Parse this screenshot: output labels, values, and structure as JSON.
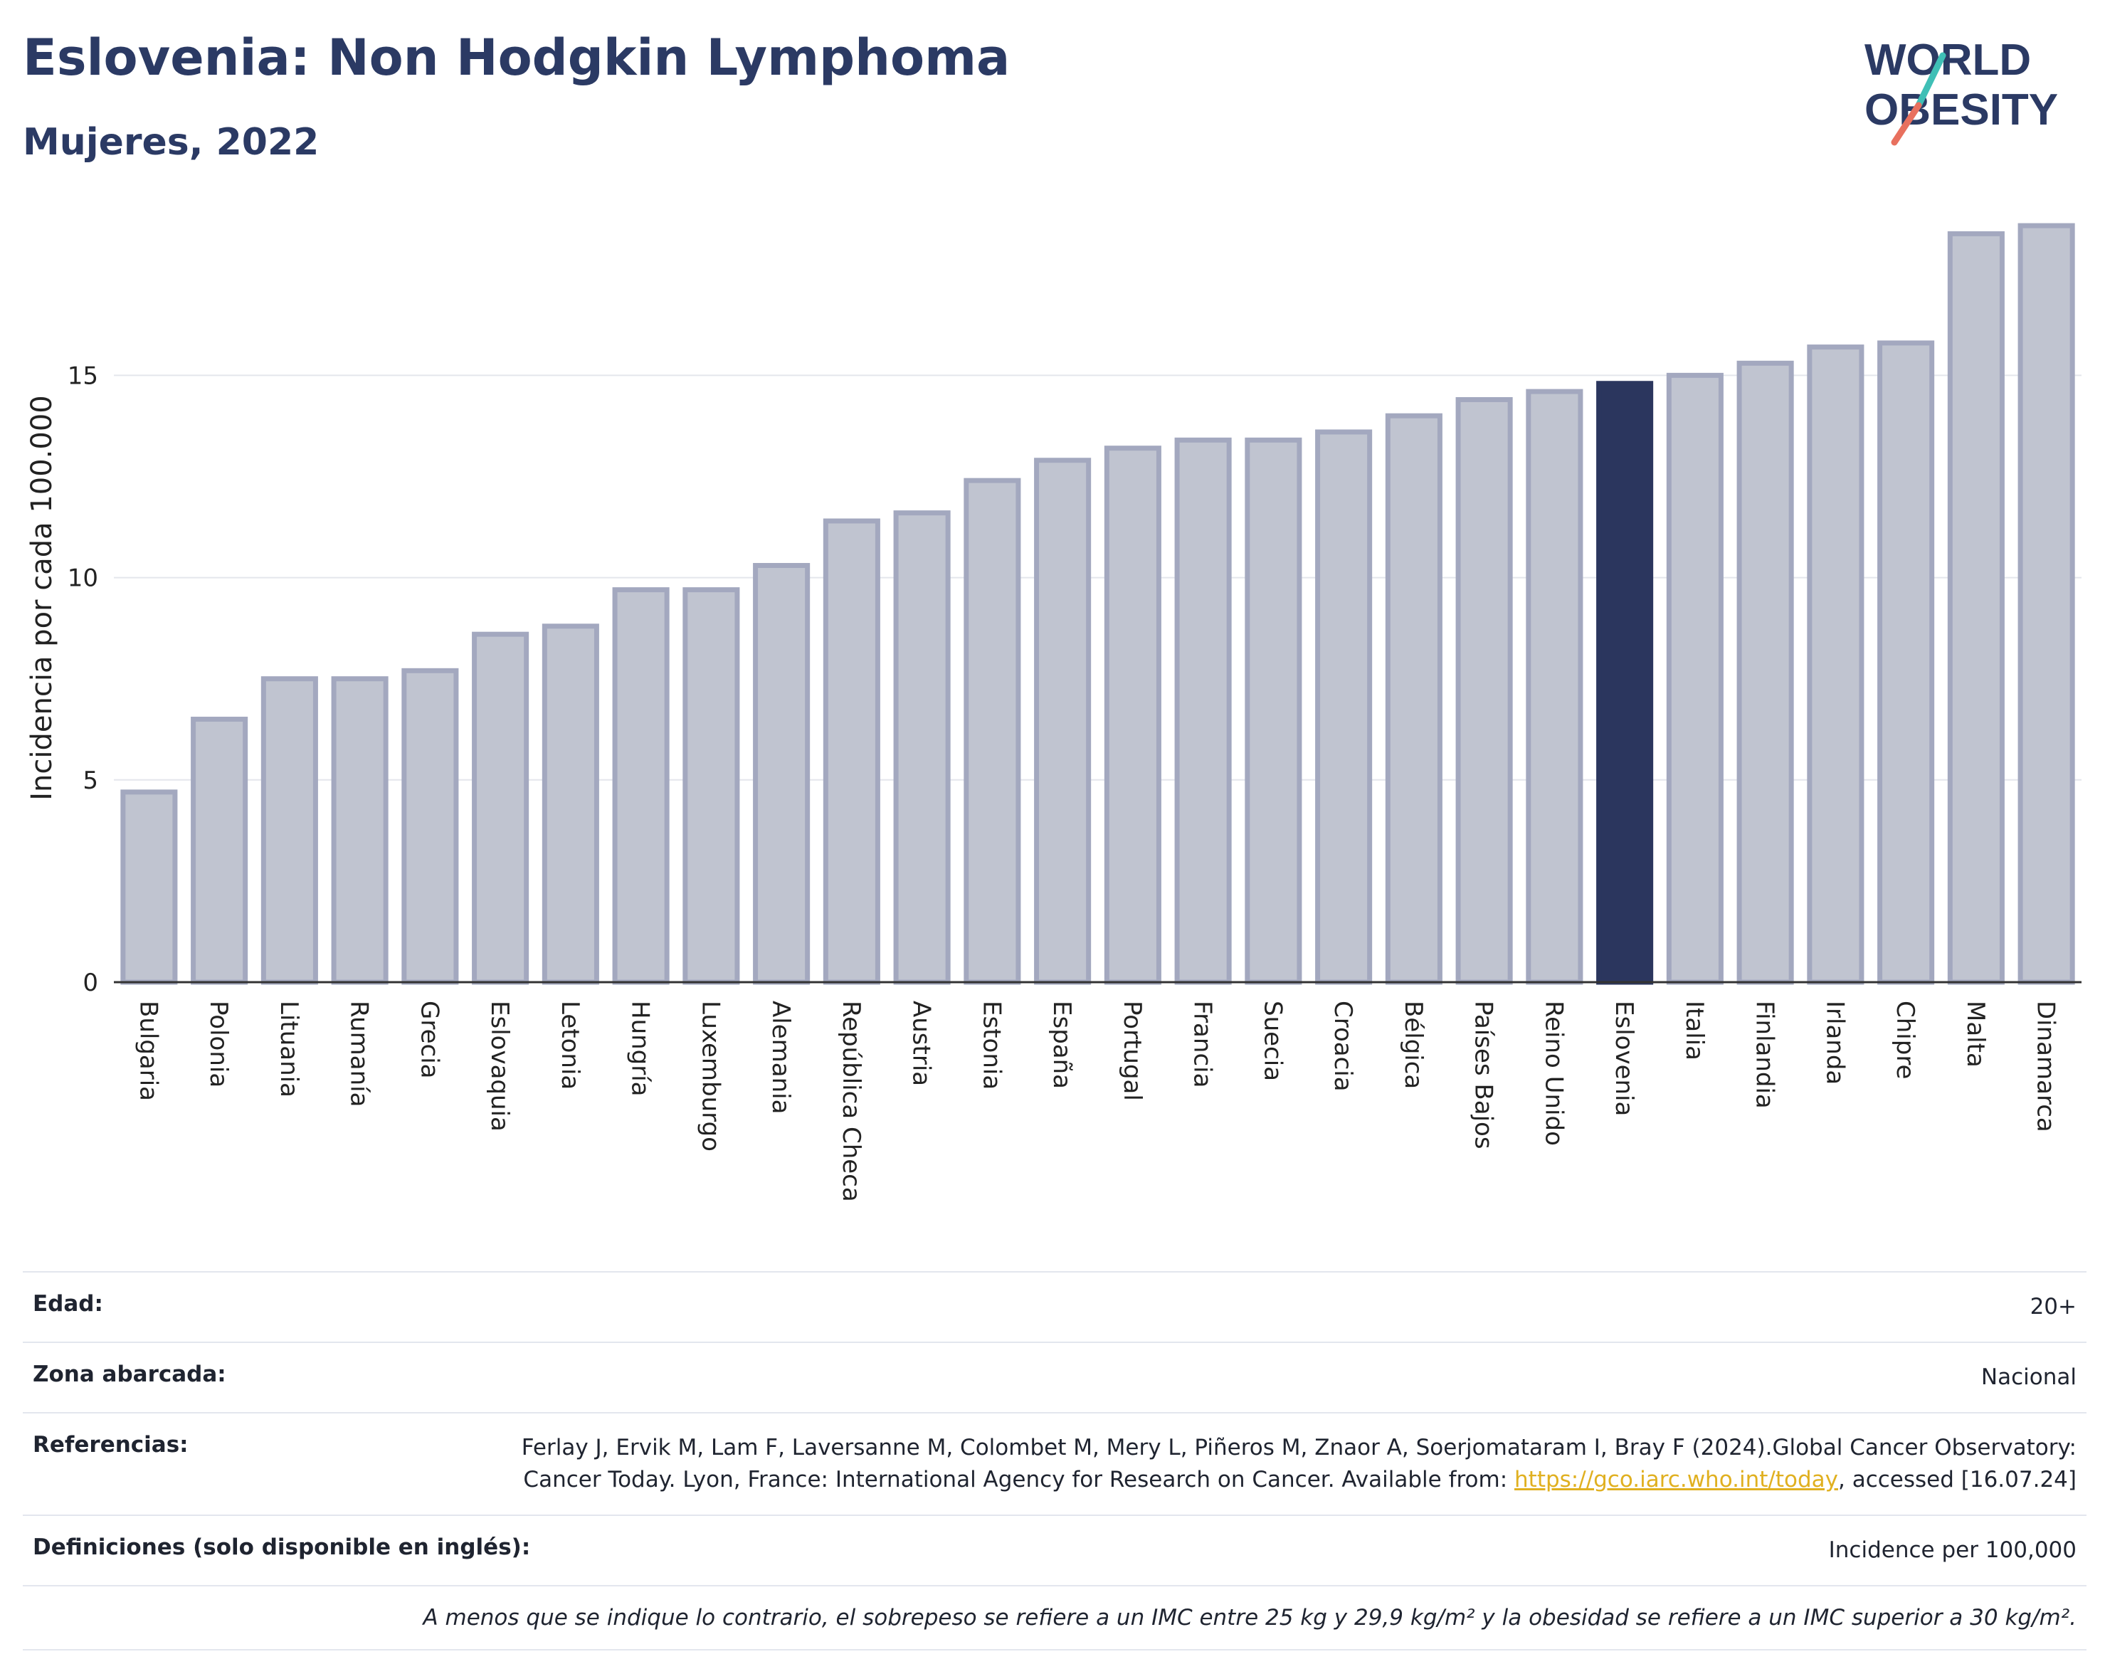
{
  "header": {
    "title": "Eslovenia: Non Hodgkin Lymphoma",
    "subtitle": "Mujeres, 2022"
  },
  "logo": {
    "line1": "WORLD",
    "line2": "OBESITY"
  },
  "colors": {
    "highlight": "#2b365e",
    "bar_fill": "#c0c4d0",
    "bar_stroke": "#a3a8bf",
    "title": "#2b3a64",
    "link": "#e0b020",
    "logo_teal": "#3fbfb6",
    "logo_red": "#e8705e"
  },
  "chart_data": {
    "type": "bar",
    "ylabel": "Incidencia por cada 100.000",
    "ylim": [
      0,
      19
    ],
    "yticks": [
      0,
      5,
      10,
      15
    ],
    "grid": true,
    "highlight": "Eslovenia",
    "categories": [
      "Bulgaria",
      "Polonia",
      "Lituania",
      "Rumanía",
      "Grecia",
      "Eslovaquia",
      "Letonia",
      "Hungría",
      "Luxemburgo",
      "Alemania",
      "República Checa",
      "Austria",
      "Estonia",
      "España",
      "Portugal",
      "Francia",
      "Suecia",
      "Croacia",
      "Bélgica",
      "Países Bajos",
      "Reino Unido",
      "Eslovenia",
      "Italia",
      "Finlandia",
      "Irlanda",
      "Chipre",
      "Malta",
      "Dinamarca"
    ],
    "values": [
      4.7,
      6.5,
      7.5,
      7.5,
      7.7,
      8.6,
      8.8,
      9.7,
      9.7,
      10.3,
      11.4,
      11.6,
      12.4,
      12.9,
      13.2,
      13.4,
      13.4,
      13.6,
      14.0,
      14.4,
      14.6,
      14.8,
      15.0,
      15.3,
      15.7,
      15.8,
      18.5,
      18.7
    ]
  },
  "meta": {
    "age_label": "Edad:",
    "age_value": "20+",
    "area_label": "Zona abarcada:",
    "area_value": "Nacional",
    "refs_label": "Referencias:",
    "refs_text": "Ferlay J, Ervik M, Lam F, Laversanne M, Colombet M, Mery L, Piñeros M, Znaor A, Soerjomataram I, Bray F (2024).Global Cancer Observatory: Cancer Today. Lyon, France: International Agency for Research on Cancer. Available from: ",
    "refs_link": "https://gco.iarc.who.int/today",
    "refs_tail": ", accessed [16.07.24]",
    "defs_label": "Definiciones (solo disponible en inglés):",
    "defs_value": "Incidence per 100,000",
    "note": "A menos que se indique lo contrario, el sobrepeso se refiere a un IMC entre 25 kg y 29,9 kg/m² y la obesidad se refiere a un IMC superior a 30 kg/m²."
  }
}
